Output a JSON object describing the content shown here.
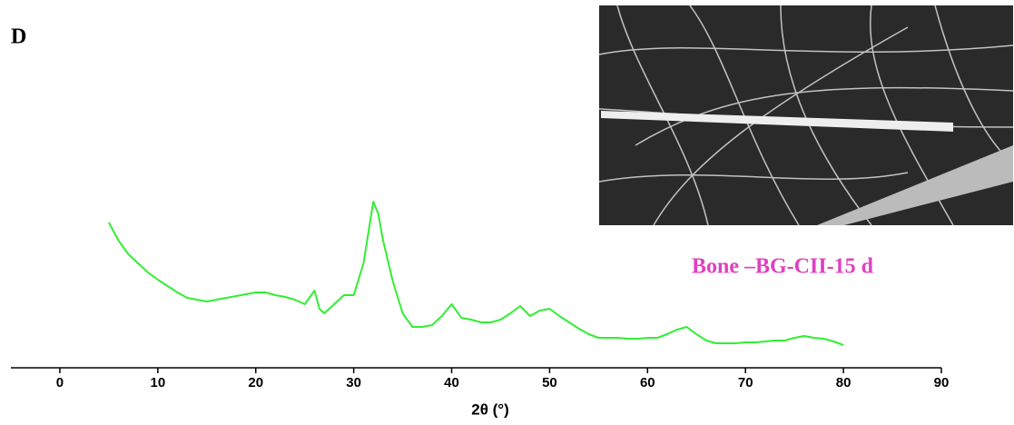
{
  "chart_data": {
    "type": "line",
    "panel_label": "D",
    "annotation": "Bone –BG-CII-15 d",
    "x_label": "2θ (°)",
    "x": [
      5,
      6,
      7,
      8,
      9,
      10,
      11,
      12,
      13,
      14,
      15,
      16,
      17,
      18,
      19,
      20,
      21,
      22,
      23,
      24,
      25,
      26,
      26.5,
      27,
      28,
      29,
      30,
      31,
      32,
      32.5,
      33,
      34,
      35,
      36,
      37,
      38,
      39,
      40,
      41,
      42,
      43,
      44,
      45,
      46,
      47,
      48,
      49,
      50,
      51,
      52,
      53,
      54,
      55,
      56,
      57,
      58,
      59,
      60,
      61,
      62,
      63,
      64,
      65,
      66,
      67,
      68,
      69,
      70,
      71,
      72,
      73,
      74,
      75,
      76,
      77,
      78,
      79,
      80
    ],
    "series": [
      {
        "name": "Bone –BG-CII-15 d",
        "color": "#33ee33",
        "values": [
          160,
          140,
          125,
          115,
          105,
          97,
          90,
          83,
          77,
          75,
          73,
          75,
          77,
          79,
          81,
          83,
          83,
          80,
          78,
          75,
          70,
          85,
          65,
          60,
          70,
          80,
          80,
          115,
          183,
          170,
          140,
          95,
          60,
          45,
          45,
          47,
          57,
          70,
          55,
          53,
          50,
          50,
          53,
          60,
          68,
          57,
          63,
          65,
          57,
          50,
          43,
          37,
          33,
          33,
          33,
          32,
          32,
          33,
          33,
          37,
          42,
          45,
          37,
          30,
          27,
          27,
          27,
          28,
          28,
          29,
          30,
          30,
          33,
          35,
          33,
          32,
          29,
          25
        ]
      }
    ],
    "xlim": [
      -5,
      90
    ],
    "xticks": [
      0,
      10,
      20,
      30,
      40,
      50,
      60,
      70,
      80,
      90
    ],
    "ylim": [
      0,
      200
    ]
  }
}
